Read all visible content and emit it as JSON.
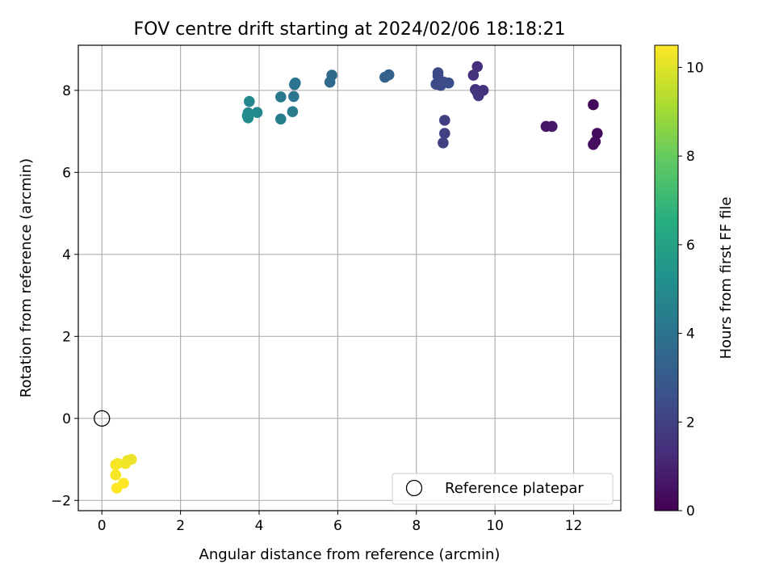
{
  "chart_data": {
    "type": "scatter",
    "title": "FOV centre drift starting at 2024/02/06 18:18:21",
    "xlabel": "Angular distance from reference (arcmin)",
    "ylabel": "Rotation from reference (arcmin)",
    "xlim": [
      -0.6,
      13.2
    ],
    "ylim": [
      -2.25,
      9.1
    ],
    "xticks": [
      0,
      2,
      4,
      6,
      8,
      10,
      12
    ],
    "yticks": [
      -2,
      0,
      2,
      4,
      6,
      8
    ],
    "grid": true,
    "legend": {
      "placement": "lower-right",
      "entries": [
        "Reference platepar"
      ]
    },
    "reference_point": {
      "x": 0,
      "y": 0,
      "label": "Reference platepar"
    },
    "colorbar": {
      "label": "Hours from first FF file",
      "range": [
        0,
        10.5
      ],
      "ticks": [
        0,
        2,
        4,
        6,
        8,
        10
      ],
      "colormap": "viridis"
    },
    "points": [
      {
        "x": 12.5,
        "y": 7.65,
        "h": 0.2
      },
      {
        "x": 12.6,
        "y": 6.95,
        "h": 0.3
      },
      {
        "x": 12.55,
        "y": 6.75,
        "h": 0.3
      },
      {
        "x": 12.5,
        "y": 6.68,
        "h": 0.4
      },
      {
        "x": 11.3,
        "y": 7.12,
        "h": 0.6
      },
      {
        "x": 11.45,
        "y": 7.12,
        "h": 0.7
      },
      {
        "x": 9.55,
        "y": 8.58,
        "h": 1.4
      },
      {
        "x": 9.45,
        "y": 8.37,
        "h": 1.5
      },
      {
        "x": 9.5,
        "y": 8.02,
        "h": 1.5
      },
      {
        "x": 9.7,
        "y": 8.0,
        "h": 1.5
      },
      {
        "x": 9.55,
        "y": 7.95,
        "h": 1.6
      },
      {
        "x": 9.58,
        "y": 7.87,
        "h": 1.6
      },
      {
        "x": 8.72,
        "y": 7.27,
        "h": 2.0
      },
      {
        "x": 8.72,
        "y": 6.95,
        "h": 2.0
      },
      {
        "x": 8.68,
        "y": 6.72,
        "h": 2.0
      },
      {
        "x": 8.55,
        "y": 8.43,
        "h": 2.3
      },
      {
        "x": 8.55,
        "y": 8.35,
        "h": 2.3
      },
      {
        "x": 8.5,
        "y": 8.15,
        "h": 2.4
      },
      {
        "x": 8.62,
        "y": 8.12,
        "h": 2.4
      },
      {
        "x": 8.7,
        "y": 8.2,
        "h": 2.4
      },
      {
        "x": 8.82,
        "y": 8.18,
        "h": 2.5
      },
      {
        "x": 7.3,
        "y": 8.38,
        "h": 3.2
      },
      {
        "x": 7.2,
        "y": 8.32,
        "h": 3.3
      },
      {
        "x": 5.85,
        "y": 8.37,
        "h": 3.6
      },
      {
        "x": 5.8,
        "y": 8.2,
        "h": 3.6
      },
      {
        "x": 4.92,
        "y": 8.18,
        "h": 4.0
      },
      {
        "x": 4.9,
        "y": 8.14,
        "h": 4.0
      },
      {
        "x": 4.88,
        "y": 7.85,
        "h": 4.1
      },
      {
        "x": 4.55,
        "y": 7.84,
        "h": 4.2
      },
      {
        "x": 4.85,
        "y": 7.48,
        "h": 4.3
      },
      {
        "x": 4.55,
        "y": 7.3,
        "h": 4.4
      },
      {
        "x": 3.75,
        "y": 7.73,
        "h": 4.8
      },
      {
        "x": 3.95,
        "y": 7.46,
        "h": 4.9
      },
      {
        "x": 3.72,
        "y": 7.45,
        "h": 4.9
      },
      {
        "x": 3.7,
        "y": 7.38,
        "h": 5.0
      },
      {
        "x": 3.72,
        "y": 7.33,
        "h": 5.0
      },
      {
        "x": 0.75,
        "y": -1.0,
        "h": 10.2
      },
      {
        "x": 0.65,
        "y": -1.03,
        "h": 10.2
      },
      {
        "x": 0.6,
        "y": -1.1,
        "h": 10.3
      },
      {
        "x": 0.4,
        "y": -1.1,
        "h": 10.3
      },
      {
        "x": 0.35,
        "y": -1.13,
        "h": 10.4
      },
      {
        "x": 0.35,
        "y": -1.38,
        "h": 10.4
      },
      {
        "x": 0.55,
        "y": -1.58,
        "h": 10.5
      },
      {
        "x": 0.38,
        "y": -1.7,
        "h": 10.5
      }
    ]
  }
}
